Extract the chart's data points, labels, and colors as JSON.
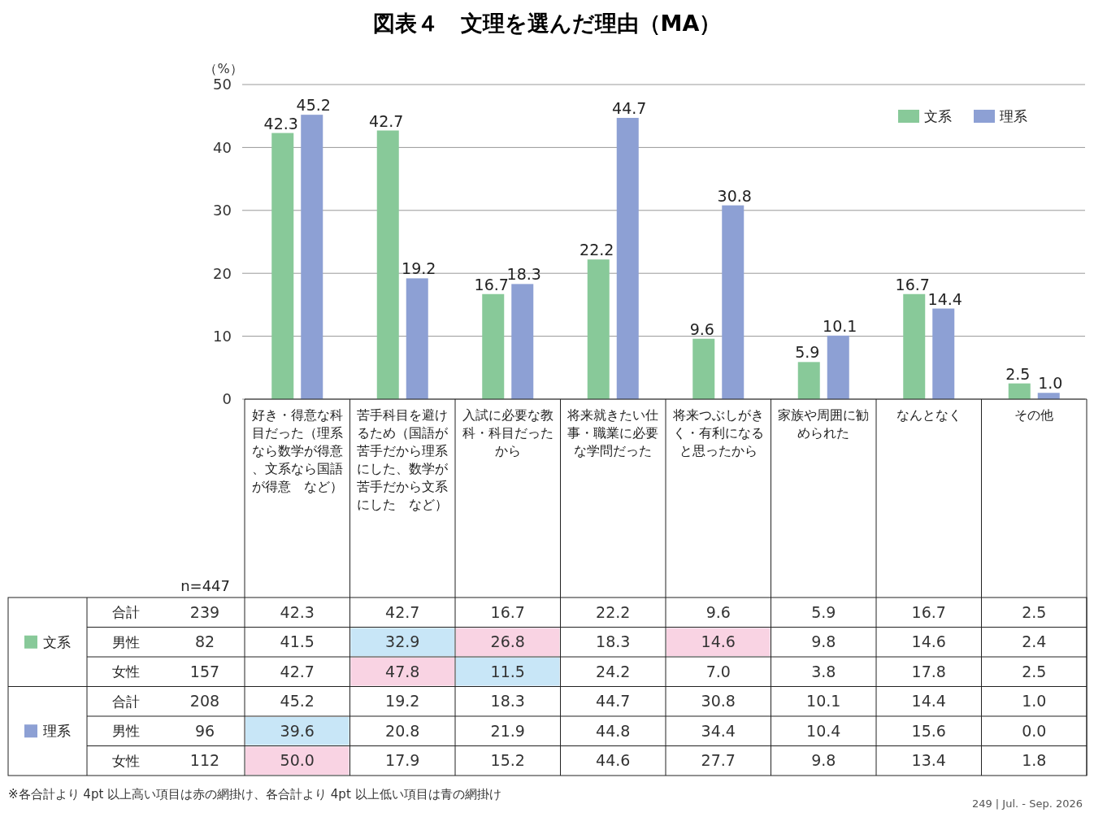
{
  "chart_data": [
    {
      "type": "bar",
      "title": "図表４　文理を選んだ理由（MA）",
      "ylabel": "（%）",
      "categories": [
        "好き・得意な科目だった（理系なら数学が得意、文系なら国語が得意　など）",
        "苦手科目を避けるため（国語が苦手だから理系にした、数学が苦手だから文系にした　など）",
        "入試に必要な教科・科目だったから",
        "将来就きたい仕事・職業に必要な学問だった",
        "将来つぶしがきく・有利になると思ったから",
        "家族や周囲に勧められた",
        "なんとなく",
        "その他"
      ],
      "series": [
        {
          "name": "文系",
          "color": "#88c999",
          "values": [
            42.3,
            42.7,
            16.7,
            22.2,
            9.6,
            5.9,
            16.7,
            2.5
          ],
          "value_labels": [
            "42.3",
            "42.7",
            "16.7",
            "22.2",
            "9.6",
            "5.9",
            "16.7",
            "2.5"
          ]
        },
        {
          "name": "理系",
          "color": "#8da0d4",
          "values": [
            45.2,
            19.2,
            18.3,
            44.7,
            30.8,
            10.1,
            14.4,
            1.0
          ],
          "value_labels": [
            "45.2",
            "19.2",
            "18.3",
            "44.7",
            "30.8",
            "10.1",
            "14.4",
            "1.0"
          ]
        }
      ],
      "ylim": [
        0,
        50
      ],
      "yticks": [
        0,
        10,
        20,
        30,
        40,
        50
      ],
      "grid": "y",
      "legend": "top right"
    },
    {
      "type": "heatmap",
      "categories": [
        null,
        null,
        null,
        null,
        null,
        null,
        null,
        null
      ],
      "y_categories": [
        "合計",
        "男性",
        "女性",
        "合計",
        "男性",
        "女性"
      ],
      "y2_categories": [
        "239",
        "82",
        "157",
        "208",
        "96",
        "112"
      ],
      "cells": [
        [
          42.3,
          42.7,
          16.7,
          22.2,
          9.6,
          5.9,
          16.7,
          2.5
        ],
        [
          41.5,
          32.9,
          26.8,
          18.3,
          14.6,
          9.8,
          14.6,
          2.4
        ],
        [
          42.7,
          47.8,
          11.5,
          24.2,
          7.0,
          3.8,
          17.8,
          2.5
        ],
        [
          45.2,
          19.2,
          18.3,
          44.7,
          30.8,
          10.1,
          14.4,
          1.0
        ],
        [
          39.6,
          20.8,
          21.9,
          44.8,
          34.4,
          10.4,
          15.6,
          0.0
        ],
        [
          50.0,
          17.9,
          15.2,
          44.6,
          27.7,
          9.8,
          13.4,
          1.8
        ]
      ],
      "cell_labels": [
        [
          "42.3",
          "42.7",
          "16.7",
          "22.2",
          "9.6",
          "5.9",
          "16.7",
          "2.5"
        ],
        [
          "41.5",
          "32.9",
          "26.8",
          "18.3",
          "14.6",
          "9.8",
          "14.6",
          "2.4"
        ],
        [
          "42.7",
          "47.8",
          "11.5",
          "24.2",
          "7.0",
          "3.8",
          "17.8",
          "2.5"
        ],
        [
          "45.2",
          "19.2",
          "18.3",
          "44.7",
          "30.8",
          "10.1",
          "14.4",
          "1.0"
        ],
        [
          "39.6",
          "20.8",
          "21.9",
          "44.8",
          "34.4",
          "10.4",
          "15.6",
          "0.0"
        ],
        [
          "50.0",
          "17.9",
          "15.2",
          "44.6",
          "27.7",
          "9.8",
          "13.4",
          "1.8"
        ]
      ],
      "colors": [
        [
          null,
          null,
          null,
          null,
          null,
          null,
          null,
          null
        ],
        [
          null,
          "#c8e6f7",
          "#f9d3e3",
          null,
          "#f9d3e3",
          null,
          null,
          null
        ],
        [
          null,
          "#f9d3e3",
          "#c8e6f7",
          null,
          null,
          null,
          null,
          null
        ],
        [
          null,
          null,
          null,
          null,
          null,
          null,
          null,
          null
        ],
        [
          "#c8e6f7",
          null,
          null,
          null,
          null,
          null,
          null,
          null
        ],
        [
          "#f9d3e3",
          null,
          null,
          null,
          null,
          null,
          null,
          null
        ]
      ],
      "annotations": [
        "n=447",
        "※各合計より 4pt 以上高い項目は赤の網掛け、各合計より 4pt 以上低い項目は青の網掛け",
        "249 | Jul. - Sep. 2026"
      ]
    }
  ]
}
